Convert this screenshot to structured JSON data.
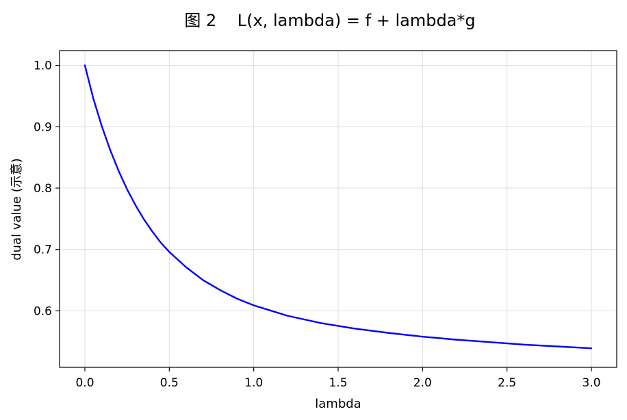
{
  "chart_data": {
    "type": "line",
    "title": "图 2    L(x, lambda) = f + lambda*g",
    "xlabel": "lambda",
    "ylabel": "dual value (示意)",
    "xlim": [
      -0.15,
      3.15
    ],
    "ylim": [
      0.508,
      1.024
    ],
    "xticks": [
      0.0,
      0.5,
      1.0,
      1.5,
      2.0,
      2.5,
      3.0
    ],
    "xtick_labels": [
      "0.0",
      "0.5",
      "1.0",
      "1.5",
      "2.0",
      "2.5",
      "3.0"
    ],
    "yticks": [
      0.6,
      0.7,
      0.8,
      0.9,
      1.0
    ],
    "ytick_labels": [
      "0.6",
      "0.7",
      "0.8",
      "0.9",
      "1.0"
    ],
    "grid": true,
    "series": [
      {
        "color": "#0000ff",
        "x": [
          0.0,
          0.05,
          0.1,
          0.15,
          0.2,
          0.25,
          0.3,
          0.35,
          0.4,
          0.45,
          0.5,
          0.6,
          0.7,
          0.8,
          0.9,
          1.0,
          1.2,
          1.4,
          1.6,
          1.8,
          2.0,
          2.2,
          2.4,
          2.6,
          2.8,
          3.0
        ],
        "y": [
          1.0,
          0.946,
          0.901,
          0.862,
          0.828,
          0.798,
          0.772,
          0.749,
          0.729,
          0.711,
          0.696,
          0.671,
          0.65,
          0.634,
          0.62,
          0.609,
          0.592,
          0.58,
          0.571,
          0.564,
          0.558,
          0.553,
          0.549,
          0.545,
          0.542,
          0.539
        ]
      }
    ]
  }
}
